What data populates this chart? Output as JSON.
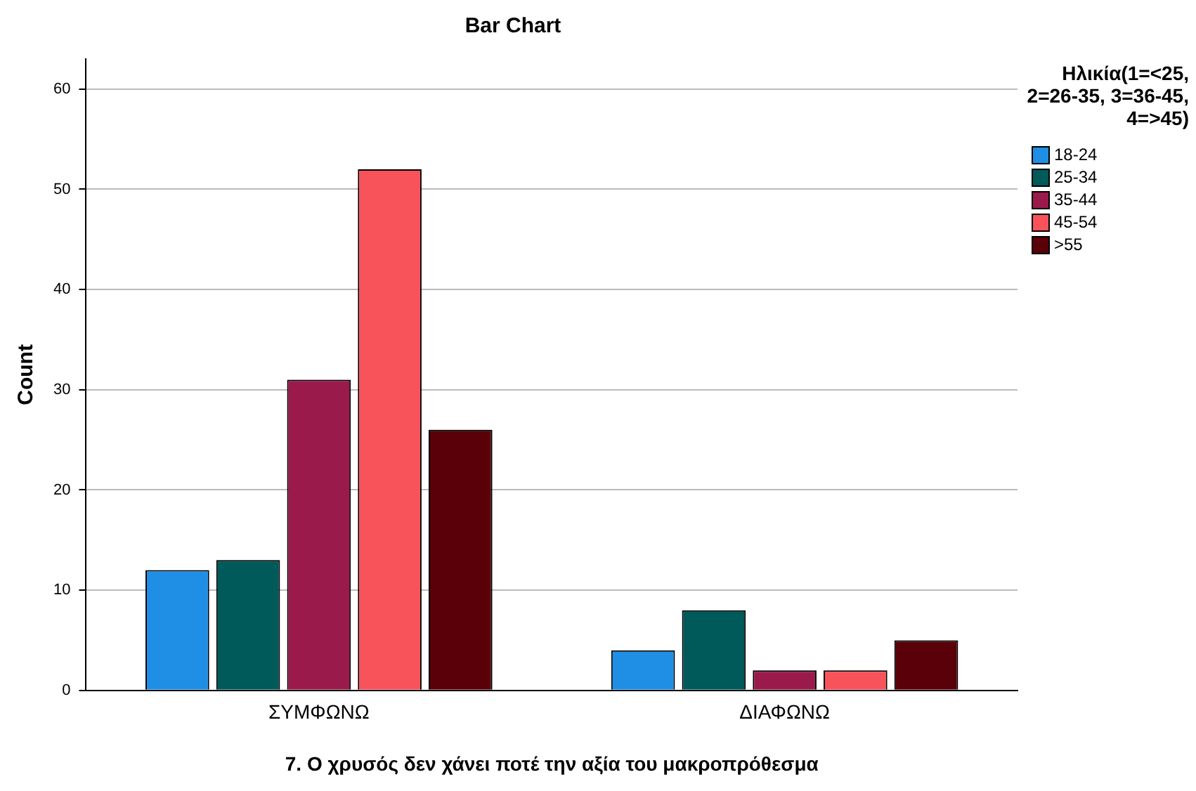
{
  "chart_data": {
    "type": "bar",
    "title": "Bar Chart",
    "xlabel": "7. Ο χρυσός δεν χάνει ποτέ την αξία του μακροπρόθεσμα",
    "ylabel": "Count",
    "legend_title": "Ηλικία(1=<25, 2=26-35, 3=36-45, 4=>45)",
    "categories": [
      "ΣΥΜΦΩΝΩ",
      "ΔΙΑΦΩΝΩ"
    ],
    "series": [
      {
        "name": "18-24",
        "color": "#1f8fe6",
        "values": [
          12,
          4
        ]
      },
      {
        "name": "25-34",
        "color": "#005a5a",
        "values": [
          13,
          8
        ]
      },
      {
        "name": "35-44",
        "color": "#9b1a4c",
        "values": [
          31,
          2
        ]
      },
      {
        "name": "45-54",
        "color": "#f8525a",
        "values": [
          52,
          2
        ]
      },
      {
        "name": ">55",
        "color": "#5a0008",
        "values": [
          26,
          5
        ]
      }
    ],
    "ylim": [
      0,
      63
    ],
    "yticks": [
      0,
      10,
      20,
      30,
      40,
      50,
      60
    ],
    "grid": "y",
    "legend": "right"
  }
}
